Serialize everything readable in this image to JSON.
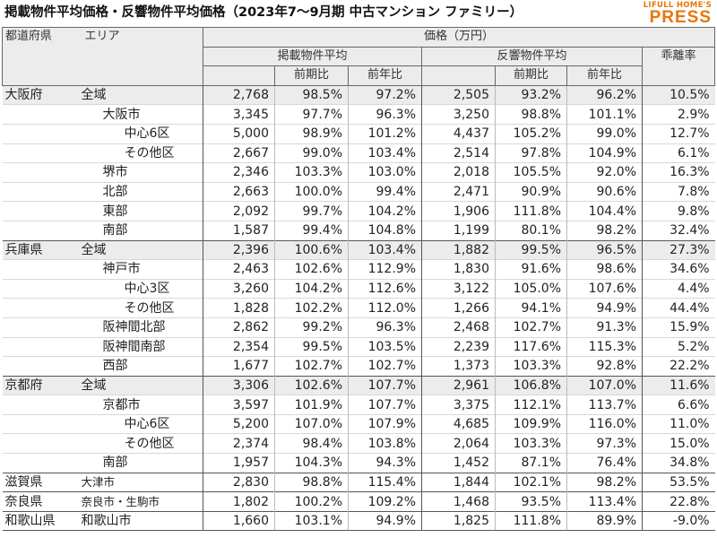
{
  "title": "掲載物件平均価格・反響物件平均価格（2023年7～9月期 中古マンション ファミリー）",
  "logo": {
    "line1": "LIFULL HOME'S",
    "line2": "PRESS"
  },
  "headers": {
    "prefecture": "都道府県",
    "area": "エリア",
    "price": "価格（万円）",
    "listed": "掲載物件平均",
    "inquired": "反響物件平均",
    "qoq": "前期比",
    "yoy": "前年比",
    "gap": "乖離率"
  },
  "rows": [
    {
      "pref": "大阪府",
      "area": "全域",
      "level": 1,
      "l": "2,768",
      "lq": "98.5%",
      "ly": "97.2%",
      "r": "2,505",
      "rq": "93.2%",
      "ry": "96.2%",
      "gap": "10.5%"
    },
    {
      "pref": "",
      "area": "大阪市",
      "level": 2,
      "l": "3,345",
      "lq": "97.7%",
      "ly": "96.3%",
      "r": "3,250",
      "rq": "98.8%",
      "ry": "101.1%",
      "gap": "2.9%"
    },
    {
      "pref": "",
      "area": "中心6区",
      "level": 3,
      "l": "5,000",
      "lq": "98.9%",
      "ly": "101.2%",
      "r": "4,437",
      "rq": "105.2%",
      "ry": "99.0%",
      "gap": "12.7%"
    },
    {
      "pref": "",
      "area": "その他区",
      "level": 3,
      "l": "2,667",
      "lq": "99.0%",
      "ly": "103.4%",
      "r": "2,514",
      "rq": "97.8%",
      "ry": "104.9%",
      "gap": "6.1%"
    },
    {
      "pref": "",
      "area": "堺市",
      "level": 2,
      "l": "2,346",
      "lq": "103.3%",
      "ly": "103.0%",
      "r": "2,018",
      "rq": "105.5%",
      "ry": "92.0%",
      "gap": "16.3%"
    },
    {
      "pref": "",
      "area": "北部",
      "level": 2,
      "l": "2,663",
      "lq": "100.0%",
      "ly": "99.4%",
      "r": "2,471",
      "rq": "90.9%",
      "ry": "90.6%",
      "gap": "7.8%"
    },
    {
      "pref": "",
      "area": "東部",
      "level": 2,
      "l": "2,092",
      "lq": "99.7%",
      "ly": "104.2%",
      "r": "1,906",
      "rq": "111.8%",
      "ry": "104.4%",
      "gap": "9.8%"
    },
    {
      "pref": "",
      "area": "南部",
      "level": 2,
      "l": "1,587",
      "lq": "99.4%",
      "ly": "104.8%",
      "r": "1,199",
      "rq": "80.1%",
      "ry": "98.2%",
      "gap": "32.4%"
    },
    {
      "pref": "兵庫県",
      "area": "全域",
      "level": 1,
      "l": "2,396",
      "lq": "100.6%",
      "ly": "103.4%",
      "r": "1,882",
      "rq": "99.5%",
      "ry": "96.5%",
      "gap": "27.3%"
    },
    {
      "pref": "",
      "area": "神戸市",
      "level": 2,
      "l": "2,463",
      "lq": "102.6%",
      "ly": "112.9%",
      "r": "1,830",
      "rq": "91.6%",
      "ry": "98.6%",
      "gap": "34.6%"
    },
    {
      "pref": "",
      "area": "中心3区",
      "level": 3,
      "l": "3,260",
      "lq": "104.2%",
      "ly": "112.6%",
      "r": "3,122",
      "rq": "105.0%",
      "ry": "107.6%",
      "gap": "4.4%"
    },
    {
      "pref": "",
      "area": "その他区",
      "level": 3,
      "l": "1,828",
      "lq": "102.2%",
      "ly": "112.0%",
      "r": "1,266",
      "rq": "94.1%",
      "ry": "94.9%",
      "gap": "44.4%"
    },
    {
      "pref": "",
      "area": "阪神間北部",
      "level": 2,
      "l": "2,862",
      "lq": "99.2%",
      "ly": "96.3%",
      "r": "2,468",
      "rq": "102.7%",
      "ry": "91.3%",
      "gap": "15.9%"
    },
    {
      "pref": "",
      "area": "阪神間南部",
      "level": 2,
      "l": "2,354",
      "lq": "99.5%",
      "ly": "103.5%",
      "r": "2,239",
      "rq": "117.6%",
      "ry": "115.3%",
      "gap": "5.2%"
    },
    {
      "pref": "",
      "area": "西部",
      "level": 2,
      "l": "1,677",
      "lq": "102.7%",
      "ly": "102.7%",
      "r": "1,373",
      "rq": "103.3%",
      "ry": "92.8%",
      "gap": "22.2%"
    },
    {
      "pref": "京都府",
      "area": "全域",
      "level": 1,
      "l": "3,306",
      "lq": "102.6%",
      "ly": "107.7%",
      "r": "2,961",
      "rq": "106.8%",
      "ry": "107.0%",
      "gap": "11.6%"
    },
    {
      "pref": "",
      "area": "京都市",
      "level": 2,
      "l": "3,597",
      "lq": "101.9%",
      "ly": "107.7%",
      "r": "3,375",
      "rq": "112.1%",
      "ry": "113.7%",
      "gap": "6.6%"
    },
    {
      "pref": "",
      "area": "中心6区",
      "level": 3,
      "l": "5,200",
      "lq": "107.0%",
      "ly": "107.9%",
      "r": "4,685",
      "rq": "109.9%",
      "ry": "116.0%",
      "gap": "11.0%"
    },
    {
      "pref": "",
      "area": "その他区",
      "level": 3,
      "l": "2,374",
      "lq": "98.4%",
      "ly": "103.8%",
      "r": "2,064",
      "rq": "103.3%",
      "ry": "97.3%",
      "gap": "15.0%"
    },
    {
      "pref": "",
      "area": "南部",
      "level": 2,
      "l": "1,957",
      "lq": "104.3%",
      "ly": "94.3%",
      "r": "1,452",
      "rq": "87.1%",
      "ry": "76.4%",
      "gap": "34.8%"
    },
    {
      "pref": "滋賀県",
      "area": "大津市",
      "level": 4,
      "l": "2,830",
      "lq": "98.8%",
      "ly": "115.4%",
      "r": "1,844",
      "rq": "102.1%",
      "ry": "98.2%",
      "gap": "53.5%"
    },
    {
      "pref": "奈良県",
      "area": "奈良市・生駒市",
      "level": 4,
      "l": "1,802",
      "lq": "100.2%",
      "ly": "109.2%",
      "r": "1,468",
      "rq": "93.5%",
      "ry": "113.4%",
      "gap": "22.8%"
    },
    {
      "pref": "和歌山県",
      "area": "和歌山市",
      "level": 1,
      "l": "1,660",
      "lq": "103.1%",
      "ly": "94.9%",
      "r": "1,825",
      "rq": "111.8%",
      "ry": "89.9%",
      "gap": "-9.0%"
    }
  ]
}
